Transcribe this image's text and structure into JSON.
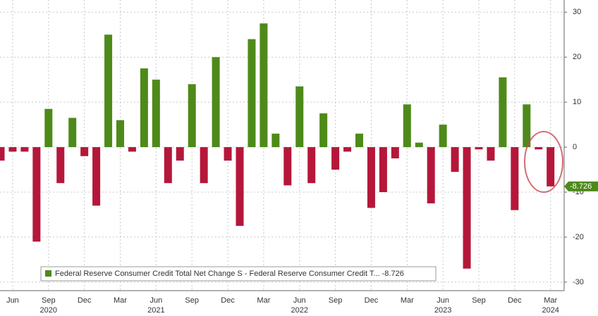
{
  "chart_data": {
    "type": "bar",
    "categories": [
      null,
      "Jun",
      null,
      null,
      "Sep",
      null,
      null,
      "Dec",
      null,
      null,
      "Mar",
      null,
      null,
      "Jun",
      null,
      null,
      "Sep",
      null,
      null,
      "Dec",
      null,
      null,
      "Mar",
      null,
      null,
      "Jun",
      null,
      null,
      "Sep",
      null,
      null,
      "Dec",
      null,
      null,
      "Mar",
      null,
      null,
      "Jun",
      null,
      null,
      "Sep",
      null,
      null,
      "Dec",
      null,
      null,
      "Mar"
    ],
    "year_labels": [
      null,
      null,
      null,
      null,
      "2020",
      null,
      null,
      null,
      null,
      null,
      null,
      null,
      null,
      "2021",
      null,
      null,
      null,
      null,
      null,
      null,
      null,
      null,
      null,
      null,
      null,
      "2022",
      null,
      null,
      null,
      null,
      null,
      null,
      null,
      null,
      null,
      null,
      null,
      "2023",
      null,
      null,
      null,
      null,
      null,
      null,
      null,
      null,
      "2024"
    ],
    "series": [
      {
        "name": "Federal Reserve Consumer Credit Total Net Change S - Federal Reserve Consumer Credit T... -8.726",
        "color": "#4e8a1a",
        "negative_color": "#b5173a",
        "values": [
          -3,
          -1,
          -1,
          -21,
          8.5,
          -8,
          6.5,
          -2,
          -13,
          25,
          6,
          -1,
          17.5,
          15,
          -8,
          -3,
          14,
          -8,
          20,
          -3,
          -17.5,
          24,
          27.5,
          3,
          -8.5,
          13.5,
          -8,
          7.5,
          -5,
          -1,
          3,
          -13.5,
          -10,
          -2.5,
          9.5,
          1,
          -12.5,
          5,
          -5.5,
          -27,
          -0.5,
          -3,
          15.5,
          -14,
          9.5,
          -0.5,
          -8.726
        ]
      }
    ],
    "ylim": [
      -31.9,
      32.7
    ],
    "yticks": [
      30,
      20,
      10,
      0,
      -10,
      -20,
      -30
    ],
    "grid": true
  }
}
